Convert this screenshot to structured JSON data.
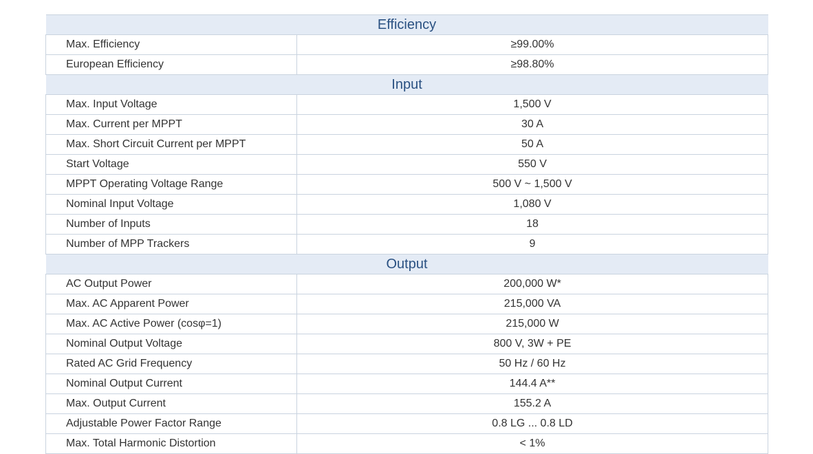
{
  "sections": [
    {
      "title": "Efficiency",
      "rows": [
        {
          "label": "Max. Efficiency",
          "value": "≥99.00%"
        },
        {
          "label": "European Efficiency",
          "value": "≥98.80%"
        }
      ]
    },
    {
      "title": "Input",
      "rows": [
        {
          "label": "Max. Input Voltage",
          "value": "1,500 V"
        },
        {
          "label": "Max. Current per MPPT",
          "value": "30 A"
        },
        {
          "label": "Max. Short Circuit Current per MPPT",
          "value": "50 A"
        },
        {
          "label": "Start Voltage",
          "value": "550 V"
        },
        {
          "label": "MPPT Operating Voltage Range",
          "value": "500 V ~ 1,500 V"
        },
        {
          "label": "Nominal Input Voltage",
          "value": "1,080 V"
        },
        {
          "label": "Number of Inputs",
          "value": "18"
        },
        {
          "label": "Number of MPP Trackers",
          "value": "9"
        }
      ]
    },
    {
      "title": "Output",
      "rows": [
        {
          "label": "AC Output Power",
          "value": "200,000 W*"
        },
        {
          "label": "Max. AC Apparent Power",
          "value": "215,000 VA"
        },
        {
          "label": "Max. AC Active Power (cosφ=1)",
          "value": "215,000 W"
        },
        {
          "label": "Nominal Output Voltage",
          "value": "800 V, 3W + PE"
        },
        {
          "label": "Rated AC Grid Frequency",
          "value": "50 Hz / 60 Hz"
        },
        {
          "label": "Nominal Output Current",
          "value": "144.4 A**"
        },
        {
          "label": "Max. Output Current",
          "value": "155.2 A"
        },
        {
          "label": "Adjustable Power Factor Range",
          "value": "0.8 LG ... 0.8 LD"
        },
        {
          "label": "Max. Total Harmonic Distortion",
          "value": "< 1%"
        }
      ]
    }
  ]
}
